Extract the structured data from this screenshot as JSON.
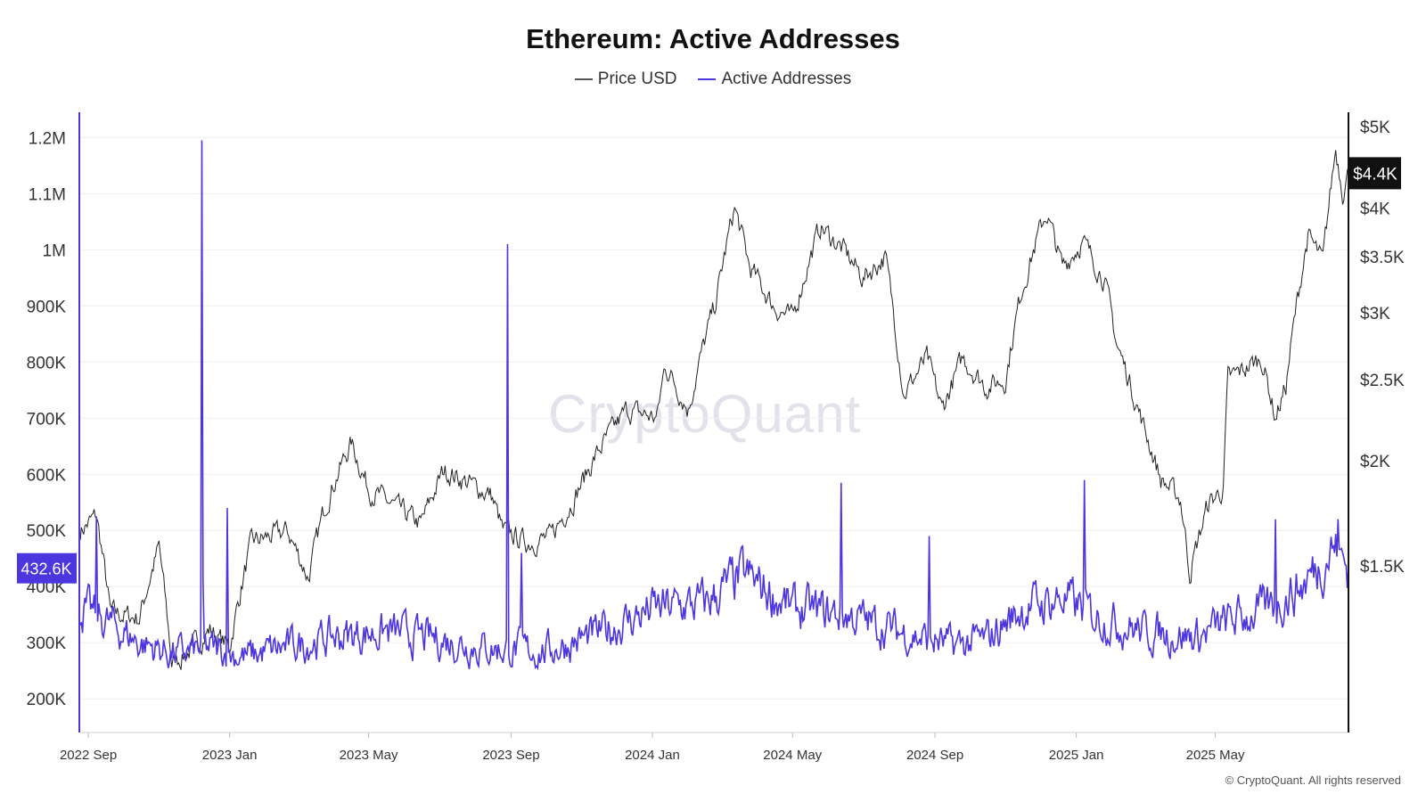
{
  "colors": {
    "price": "#222222",
    "active": "#4b36e0",
    "grid": "#efefef",
    "badge_price": "#111111",
    "badge_active": "#4b36e0"
  },
  "chart_data": {
    "type": "line",
    "title": "Ethereum: Active Addresses",
    "legend": [
      "Price USD",
      "Active Addresses"
    ],
    "legend_position": "top-center",
    "x_start": "2022-08-25",
    "x_end": "2025-08-24",
    "x_ticks": [
      {
        "label": "2022 Sep",
        "date": "2022-09-01"
      },
      {
        "label": "2023 Jan",
        "date": "2023-01-01"
      },
      {
        "label": "2023 May",
        "date": "2023-05-01"
      },
      {
        "label": "2023 Sep",
        "date": "2023-09-01"
      },
      {
        "label": "2024 Jan",
        "date": "2024-01-01"
      },
      {
        "label": "2024 May",
        "date": "2024-05-01"
      },
      {
        "label": "2024 Sep",
        "date": "2024-09-01"
      },
      {
        "label": "2025 Jan",
        "date": "2025-01-01"
      },
      {
        "label": "2025 May",
        "date": "2025-05-01"
      }
    ],
    "left_axis": {
      "name": "Active Addresses",
      "scale": "linear",
      "ylim": [
        140000,
        1245000
      ],
      "ticks": [
        {
          "label": "1.2M",
          "value": 1200000
        },
        {
          "label": "1.1M",
          "value": 1100000
        },
        {
          "label": "1M",
          "value": 1000000
        },
        {
          "label": "900K",
          "value": 900000
        },
        {
          "label": "800K",
          "value": 800000
        },
        {
          "label": "700K",
          "value": 700000
        },
        {
          "label": "600K",
          "value": 600000
        },
        {
          "label": "500K",
          "value": 500000
        },
        {
          "label": "400K",
          "value": 400000
        },
        {
          "label": "300K",
          "value": 300000
        },
        {
          "label": "200K",
          "value": 200000
        }
      ]
    },
    "right_axis": {
      "name": "Price USD",
      "scale": "log",
      "ylim": [
        950,
        5200
      ],
      "ticks": [
        {
          "label": "$5K",
          "value": 5000
        },
        {
          "label": "$4K",
          "value": 4000
        },
        {
          "label": "$3.5K",
          "value": 3500
        },
        {
          "label": "$3K",
          "value": 3000
        },
        {
          "label": "$2.5K",
          "value": 2500
        },
        {
          "label": "$2K",
          "value": 2000
        },
        {
          "label": "$1.5K",
          "value": 1500
        }
      ]
    },
    "current_badges": {
      "active_addresses": "432.6K",
      "price": "$4.4K"
    },
    "series": [
      {
        "name": "Price USD",
        "axis": "right",
        "noise": 0.025,
        "points": [
          {
            "date": "2022-08-25",
            "value": 1650
          },
          {
            "date": "2022-09-08",
            "value": 1720
          },
          {
            "date": "2022-09-20",
            "value": 1320
          },
          {
            "date": "2022-10-15",
            "value": 1300
          },
          {
            "date": "2022-11-01",
            "value": 1580
          },
          {
            "date": "2022-11-12",
            "value": 1150
          },
          {
            "date": "2022-11-25",
            "value": 1180
          },
          {
            "date": "2022-12-15",
            "value": 1260
          },
          {
            "date": "2023-01-01",
            "value": 1200
          },
          {
            "date": "2023-01-20",
            "value": 1600
          },
          {
            "date": "2023-02-20",
            "value": 1650
          },
          {
            "date": "2023-03-10",
            "value": 1450
          },
          {
            "date": "2023-03-25",
            "value": 1780
          },
          {
            "date": "2023-04-16",
            "value": 2100
          },
          {
            "date": "2023-05-01",
            "value": 1850
          },
          {
            "date": "2023-06-15",
            "value": 1680
          },
          {
            "date": "2023-07-05",
            "value": 1950
          },
          {
            "date": "2023-08-15",
            "value": 1820
          },
          {
            "date": "2023-08-25",
            "value": 1650
          },
          {
            "date": "2023-09-15",
            "value": 1600
          },
          {
            "date": "2023-10-05",
            "value": 1620
          },
          {
            "date": "2023-10-25",
            "value": 1800
          },
          {
            "date": "2023-11-15",
            "value": 2050
          },
          {
            "date": "2023-12-10",
            "value": 2300
          },
          {
            "date": "2024-01-05",
            "value": 2250
          },
          {
            "date": "2024-01-12",
            "value": 2600
          },
          {
            "date": "2024-02-01",
            "value": 2300
          },
          {
            "date": "2024-02-25",
            "value": 3100
          },
          {
            "date": "2024-03-12",
            "value": 4000
          },
          {
            "date": "2024-03-25",
            "value": 3400
          },
          {
            "date": "2024-04-15",
            "value": 3050
          },
          {
            "date": "2024-05-01",
            "value": 2950
          },
          {
            "date": "2024-05-25",
            "value": 3800
          },
          {
            "date": "2024-06-15",
            "value": 3550
          },
          {
            "date": "2024-07-01",
            "value": 3300
          },
          {
            "date": "2024-07-20",
            "value": 3500
          },
          {
            "date": "2024-08-05",
            "value": 2400
          },
          {
            "date": "2024-08-25",
            "value": 2650
          },
          {
            "date": "2024-09-07",
            "value": 2300
          },
          {
            "date": "2024-09-25",
            "value": 2650
          },
          {
            "date": "2024-10-15",
            "value": 2450
          },
          {
            "date": "2024-11-01",
            "value": 2500
          },
          {
            "date": "2024-11-15",
            "value": 3200
          },
          {
            "date": "2024-12-06",
            "value": 3950
          },
          {
            "date": "2024-12-20",
            "value": 3400
          },
          {
            "date": "2025-01-06",
            "value": 3650
          },
          {
            "date": "2025-01-25",
            "value": 3300
          },
          {
            "date": "2025-02-05",
            "value": 2750
          },
          {
            "date": "2025-02-28",
            "value": 2200
          },
          {
            "date": "2025-03-15",
            "value": 1900
          },
          {
            "date": "2025-04-01",
            "value": 1800
          },
          {
            "date": "2025-04-09",
            "value": 1470
          },
          {
            "date": "2025-04-25",
            "value": 1780
          },
          {
            "date": "2025-05-08",
            "value": 1850
          },
          {
            "date": "2025-05-12",
            "value": 2500
          },
          {
            "date": "2025-06-10",
            "value": 2650
          },
          {
            "date": "2025-06-22",
            "value": 2250
          },
          {
            "date": "2025-07-01",
            "value": 2450
          },
          {
            "date": "2025-07-20",
            "value": 3700
          },
          {
            "date": "2025-08-02",
            "value": 3450
          },
          {
            "date": "2025-08-13",
            "value": 4700
          },
          {
            "date": "2025-08-19",
            "value": 4200
          },
          {
            "date": "2025-08-24",
            "value": 4400
          }
        ]
      },
      {
        "name": "Active Addresses",
        "axis": "left",
        "noise": 0.09,
        "points": [
          {
            "date": "2022-08-25",
            "value": 360000
          },
          {
            "date": "2022-09-15",
            "value": 340000
          },
          {
            "date": "2022-10-15",
            "value": 300000
          },
          {
            "date": "2022-11-15",
            "value": 280000
          },
          {
            "date": "2022-12-15",
            "value": 290000
          },
          {
            "date": "2023-01-15",
            "value": 275000
          },
          {
            "date": "2023-02-15",
            "value": 290000
          },
          {
            "date": "2023-04-01",
            "value": 310000
          },
          {
            "date": "2023-05-15",
            "value": 320000
          },
          {
            "date": "2023-07-01",
            "value": 305000
          },
          {
            "date": "2023-08-15",
            "value": 290000
          },
          {
            "date": "2023-10-01",
            "value": 285000
          },
          {
            "date": "2023-11-15",
            "value": 315000
          },
          {
            "date": "2024-01-01",
            "value": 360000
          },
          {
            "date": "2024-02-15",
            "value": 370000
          },
          {
            "date": "2024-03-20",
            "value": 420000
          },
          {
            "date": "2024-05-01",
            "value": 360000
          },
          {
            "date": "2024-06-15",
            "value": 350000
          },
          {
            "date": "2024-08-01",
            "value": 320000
          },
          {
            "date": "2024-09-15",
            "value": 295000
          },
          {
            "date": "2024-10-15",
            "value": 305000
          },
          {
            "date": "2024-11-15",
            "value": 360000
          },
          {
            "date": "2024-12-20",
            "value": 380000
          },
          {
            "date": "2025-01-15",
            "value": 350000
          },
          {
            "date": "2025-03-01",
            "value": 320000
          },
          {
            "date": "2025-04-15",
            "value": 310000
          },
          {
            "date": "2025-05-15",
            "value": 340000
          },
          {
            "date": "2025-06-15",
            "value": 360000
          },
          {
            "date": "2025-07-15",
            "value": 400000
          },
          {
            "date": "2025-08-10",
            "value": 470000
          },
          {
            "date": "2025-08-24",
            "value": 432600
          }
        ],
        "spikes": [
          {
            "date": "2022-09-08",
            "value": 525000
          },
          {
            "date": "2022-12-08",
            "value": 1195000
          },
          {
            "date": "2022-12-09",
            "value": 410000
          },
          {
            "date": "2022-12-30",
            "value": 540000
          },
          {
            "date": "2023-08-29",
            "value": 1010000
          },
          {
            "date": "2023-09-10",
            "value": 460000
          },
          {
            "date": "2024-06-12",
            "value": 585000
          },
          {
            "date": "2024-08-27",
            "value": 490000
          },
          {
            "date": "2025-01-08",
            "value": 590000
          },
          {
            "date": "2025-06-22",
            "value": 520000
          },
          {
            "date": "2025-08-15",
            "value": 520000
          }
        ]
      }
    ]
  },
  "watermark": "CryptoQuant",
  "copyright": "© CryptoQuant. All rights reserved"
}
